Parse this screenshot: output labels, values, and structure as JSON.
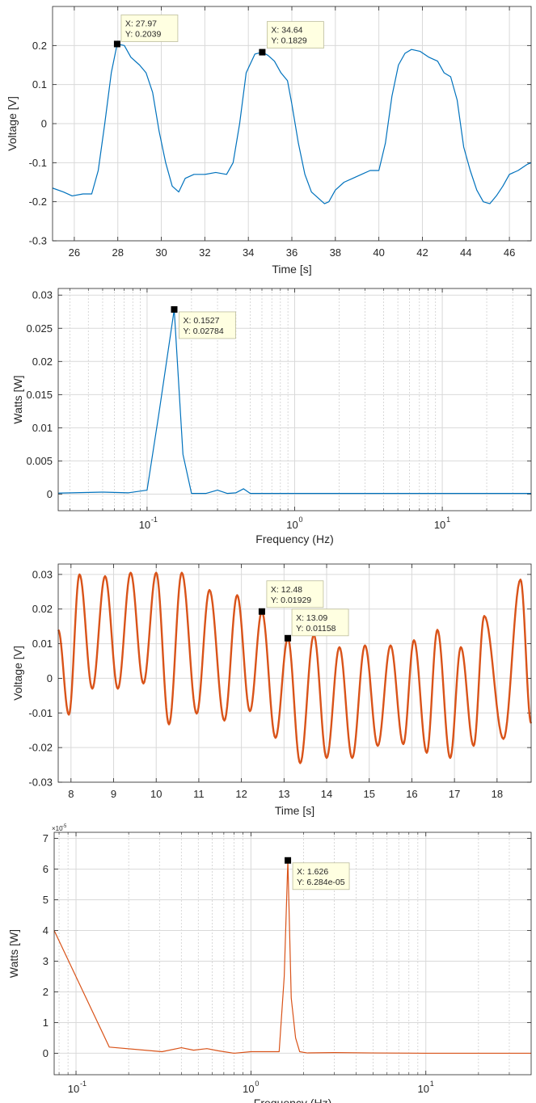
{
  "figure": {
    "colors": {
      "blue": "#0072BD",
      "orange": "#D95319",
      "grid": "#d9d9d9",
      "axis": "#262626",
      "tip_bg": "#FFFFE1",
      "tip_border": "#BDBD9C"
    }
  },
  "chart_data": [
    {
      "type": "line",
      "xscale": "linear",
      "xlabel": "Time [s]",
      "ylabel": "Voltage [V]",
      "xlim": [
        25,
        47
      ],
      "ylim": [
        -0.3,
        0.3
      ],
      "xticks": [
        26,
        28,
        30,
        32,
        34,
        36,
        38,
        40,
        42,
        44,
        46
      ],
      "xtick_labels": [
        "26",
        "28",
        "30",
        "32",
        "34",
        "36",
        "38",
        "40",
        "42",
        "44",
        "46"
      ],
      "yticks": [
        -0.3,
        -0.2,
        -0.1,
        0,
        0.1,
        0.2
      ],
      "ytick_labels": [
        "-0.3",
        "-0.2",
        "-0.1",
        "0",
        "0.1",
        "0.2"
      ],
      "grid": true,
      "series": [
        {
          "color": "#0072BD",
          "x": [
            25.0,
            25.5,
            25.9,
            26.4,
            26.8,
            27.1,
            27.4,
            27.7,
            27.97,
            28.3,
            28.6,
            29.0,
            29.3,
            29.6,
            29.9,
            30.2,
            30.5,
            30.8,
            31.1,
            31.5,
            32.0,
            32.5,
            33.0,
            33.3,
            33.6,
            33.9,
            34.3,
            34.64,
            34.9,
            35.2,
            35.5,
            35.8,
            36.0,
            36.3,
            36.6,
            36.9,
            37.2,
            37.5,
            37.7,
            38.0,
            38.4,
            38.8,
            39.2,
            39.6,
            40.0,
            40.3,
            40.6,
            40.9,
            41.2,
            41.5,
            41.9,
            42.3,
            42.7,
            43.0,
            43.3,
            43.6,
            43.9,
            44.2,
            44.5,
            44.8,
            45.1,
            45.4,
            45.7,
            46.0,
            46.4,
            46.8,
            47.0
          ],
          "y": [
            -0.165,
            -0.175,
            -0.185,
            -0.18,
            -0.18,
            -0.12,
            0.0,
            0.13,
            0.2039,
            0.2,
            0.17,
            0.15,
            0.13,
            0.08,
            -0.02,
            -0.1,
            -0.16,
            -0.175,
            -0.14,
            -0.13,
            -0.13,
            -0.125,
            -0.13,
            -0.1,
            0.0,
            0.13,
            0.178,
            0.1829,
            0.175,
            0.16,
            0.13,
            0.11,
            0.05,
            -0.05,
            -0.13,
            -0.175,
            -0.19,
            -0.205,
            -0.2,
            -0.17,
            -0.15,
            -0.14,
            -0.13,
            -0.12,
            -0.12,
            -0.05,
            0.07,
            0.15,
            0.18,
            0.19,
            0.185,
            0.17,
            0.16,
            0.13,
            0.12,
            0.06,
            -0.06,
            -0.12,
            -0.17,
            -0.2,
            -0.205,
            -0.185,
            -0.16,
            -0.13,
            -0.12,
            -0.105,
            -0.1
          ]
        }
      ],
      "datatips": [
        {
          "x": 27.97,
          "y": 0.2039,
          "line1": "X: 27.97",
          "line2": "Y: 0.2039",
          "side": "right"
        },
        {
          "x": 34.64,
          "y": 0.1829,
          "line1": "X: 34.64",
          "line2": "Y: 0.1829",
          "side": "up"
        }
      ]
    },
    {
      "type": "line",
      "xscale": "log",
      "xlabel": "Frequency (Hz)",
      "ylabel": "Watts [W]",
      "xlim": [
        0.025,
        40
      ],
      "ylim": [
        -0.0025,
        0.031
      ],
      "xticks": [
        0.1,
        1,
        10
      ],
      "xtick_labels": [
        "10",
        "10",
        "10"
      ],
      "xtick_exponents": [
        "-1",
        "0",
        "1"
      ],
      "yticks": [
        0,
        0.005,
        0.01,
        0.015,
        0.02,
        0.025,
        0.03
      ],
      "ytick_labels": [
        "0",
        "0.005",
        "0.01",
        "0.015",
        "0.02",
        "0.025",
        "0.03"
      ],
      "grid": true,
      "series": [
        {
          "color": "#0072BD",
          "x": [
            0.025,
            0.05,
            0.075,
            0.1,
            0.12,
            0.1527,
            0.175,
            0.2,
            0.25,
            0.3,
            0.35,
            0.4,
            0.45,
            0.5,
            1,
            10,
            40
          ],
          "y": [
            0.00015,
            0.0003,
            0.0002,
            0.0006,
            0.012,
            0.02784,
            0.006,
            0.0001,
            0.0001,
            0.0006,
            0.0001,
            0.0002,
            0.0008,
            0.0001,
            0.0001,
            0.0001,
            0.0001
          ]
        }
      ],
      "datatips": [
        {
          "x": 0.1527,
          "y": 0.02784,
          "line1": "X: 0.1527",
          "line2": "Y: 0.02784",
          "side": "right-down"
        }
      ]
    },
    {
      "type": "line",
      "xscale": "linear",
      "xlabel": "Time [s]",
      "ylabel": "Voltage [V]",
      "xlim": [
        7.7,
        18.8
      ],
      "ylim": [
        -0.03,
        0.033
      ],
      "xticks": [
        8,
        9,
        10,
        11,
        12,
        13,
        14,
        15,
        16,
        17,
        18
      ],
      "xtick_labels": [
        "8",
        "9",
        "10",
        "11",
        "12",
        "13",
        "14",
        "15",
        "16",
        "17",
        "18"
      ],
      "yticks": [
        -0.03,
        -0.02,
        -0.01,
        0,
        0.01,
        0.02,
        0.03
      ],
      "ytick_labels": [
        "-0.03",
        "-0.02",
        "-0.01",
        "0",
        "0.01",
        "0.02",
        "0.03"
      ],
      "grid": true,
      "series": [
        {
          "color": "#D95319",
          "oscillation": {
            "peak_times": [
              8.2,
              8.8,
              9.4,
              10.0,
              10.6,
              11.25,
              11.9,
              12.48,
              13.09,
              13.7,
              14.3,
              14.9,
              15.5,
              16.05,
              16.6,
              17.15,
              17.7,
              18.55
            ],
            "peak_values": [
              0.03,
              0.0295,
              0.0305,
              0.0305,
              0.0305,
              0.0255,
              0.024,
              0.01929,
              0.01158,
              0.0125,
              0.009,
              0.0095,
              0.0095,
              0.011,
              0.014,
              0.009,
              0.018,
              0.0285
            ],
            "trough_times": [
              7.7,
              7.95,
              8.5,
              9.1,
              9.7,
              10.3,
              10.95,
              11.6,
              12.2,
              12.8,
              13.38,
              14.0,
              14.6,
              15.2,
              15.8,
              16.35,
              16.9,
              17.45,
              18.15,
              18.8
            ],
            "trough_values": [
              0.014,
              -0.0105,
              -0.003,
              -0.003,
              -0.0015,
              -0.0133,
              -0.0102,
              -0.0122,
              -0.0095,
              -0.0172,
              -0.0245,
              -0.023,
              -0.023,
              -0.0195,
              -0.019,
              -0.0215,
              -0.023,
              -0.0195,
              -0.0175,
              -0.013
            ]
          }
        }
      ],
      "datatips": [
        {
          "x": 12.48,
          "y": 0.01929,
          "line1": "X: 12.48",
          "line2": "Y: 0.01929",
          "side": "up"
        },
        {
          "x": 13.09,
          "y": 0.01158,
          "line1": "X: 13.09",
          "line2": "Y: 0.01158",
          "side": "right"
        }
      ]
    },
    {
      "type": "line",
      "xscale": "log",
      "xlabel": "Frequency (Hz)",
      "ylabel": "Watts [W]",
      "xlim": [
        0.075,
        40
      ],
      "ylim": [
        -0.7,
        7.2
      ],
      "y_exponent_label": "×10",
      "y_exponent": "-5",
      "xticks": [
        0.1,
        1,
        10
      ],
      "xtick_labels": [
        "10",
        "10",
        "10"
      ],
      "xtick_exponents": [
        "-1",
        "0",
        "1"
      ],
      "yticks": [
        0,
        1,
        2,
        3,
        4,
        5,
        6,
        7
      ],
      "ytick_labels": [
        "0",
        "1",
        "2",
        "3",
        "4",
        "5",
        "6",
        "7"
      ],
      "grid": true,
      "series": [
        {
          "color": "#D95319",
          "x": [
            0.075,
            0.155,
            0.31,
            0.4,
            0.47,
            0.56,
            0.65,
            0.8,
            1.0,
            1.2,
            1.45,
            1.55,
            1.626,
            1.7,
            1.8,
            1.9,
            2.1,
            3,
            5,
            10,
            40
          ],
          "y": [
            4.0,
            0.2,
            0.05,
            0.18,
            0.1,
            0.15,
            0.08,
            0.0,
            0.05,
            0.05,
            0.05,
            2.5,
            6.284,
            1.8,
            0.5,
            0.05,
            0.01,
            0.02,
            0.01,
            0.0,
            0.0
          ]
        }
      ],
      "datatips": [
        {
          "x": 1.626,
          "y": 6.284,
          "line1": "X: 1.626",
          "line2": "Y: 6.284e-05",
          "side": "right-down"
        }
      ]
    }
  ]
}
